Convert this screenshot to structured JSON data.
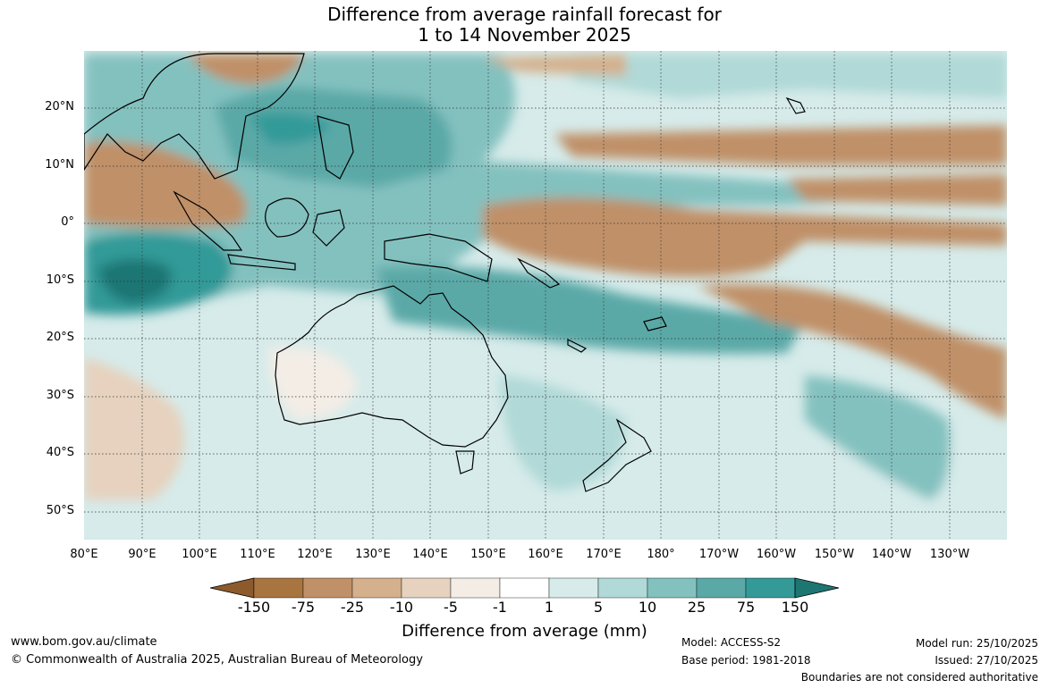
{
  "title_line1": "Difference from average rainfall forecast for",
  "title_line2": "1 to 14 November 2025",
  "lat_labels": [
    "20°N",
    "10°N",
    "0°",
    "10°S",
    "20°S",
    "30°S",
    "40°S",
    "50°S"
  ],
  "lon_labels": [
    "80°E",
    "90°E",
    "100°E",
    "110°E",
    "120°E",
    "130°E",
    "140°E",
    "150°E",
    "160°E",
    "170°E",
    "180°",
    "170°W",
    "160°W",
    "150°W",
    "140°W",
    "130°W"
  ],
  "colorbar": {
    "ticks": [
      "-150",
      "-75",
      "-25",
      "-10",
      "-5",
      "-1",
      "1",
      "5",
      "10",
      "25",
      "75",
      "150"
    ],
    "colors": [
      "#8c5a2b",
      "#a87440",
      "#c09068",
      "#d4b08c",
      "#e6d2be",
      "#f3ede6",
      "#ffffff",
      "#d6ebea",
      "#b0d9d7",
      "#83c1bf",
      "#5aa9a7",
      "#339a98",
      "#1e7673"
    ],
    "title": "Difference from average (mm)"
  },
  "footer": {
    "website": "www.bom.gov.au/climate",
    "copyright": "© Commonwealth of Australia 2025, Australian Bureau of Meteorology",
    "model": "Model: ACCESS-S2",
    "base_period": "Base period: 1981-2018",
    "model_run": "Model run: 25/10/2025",
    "issued": "Issued: 27/10/2025",
    "disclaimer": "Boundaries are not considered authoritative"
  }
}
